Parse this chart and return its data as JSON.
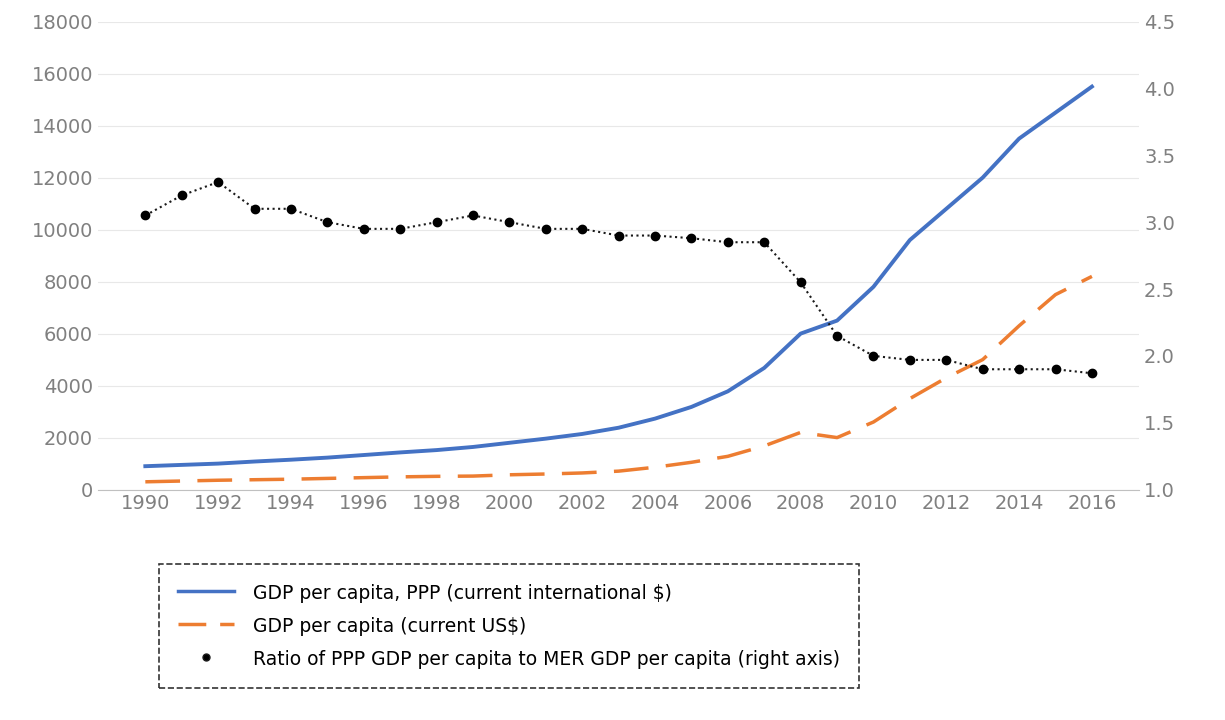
{
  "years": [
    1990,
    1991,
    1992,
    1993,
    1994,
    1995,
    1996,
    1997,
    1998,
    1999,
    2000,
    2001,
    2002,
    2003,
    2004,
    2005,
    2006,
    2007,
    2008,
    2009,
    2010,
    2011,
    2012,
    2013,
    2014,
    2015,
    2016
  ],
  "gdp_ppp": [
    900,
    950,
    1000,
    1080,
    1150,
    1230,
    1330,
    1430,
    1520,
    1640,
    1800,
    1960,
    2140,
    2380,
    2730,
    3180,
    3780,
    4680,
    6000,
    6500,
    7800,
    9600,
    10800,
    12000,
    13500,
    14500,
    15500
  ],
  "gdp_mer": [
    300,
    330,
    360,
    380,
    400,
    430,
    460,
    490,
    510,
    520,
    570,
    600,
    640,
    710,
    860,
    1050,
    1280,
    1680,
    2200,
    2000,
    2600,
    3500,
    4300,
    5000,
    6300,
    7500,
    8200
  ],
  "ratio": [
    3.05,
    3.2,
    3.3,
    3.1,
    3.1,
    3.0,
    2.95,
    2.95,
    3.0,
    3.05,
    3.0,
    2.95,
    2.95,
    2.9,
    2.9,
    2.88,
    2.85,
    2.85,
    2.55,
    2.15,
    2.0,
    1.97,
    1.97,
    1.9,
    1.9,
    1.9,
    1.87
  ],
  "left_ylim": [
    0,
    18000
  ],
  "left_yticks": [
    0,
    2000,
    4000,
    6000,
    8000,
    10000,
    12000,
    14000,
    16000,
    18000
  ],
  "right_ylim": [
    1.0,
    4.5
  ],
  "right_yticks": [
    1.0,
    1.5,
    2.0,
    2.5,
    3.0,
    3.5,
    4.0,
    4.5
  ],
  "xticks": [
    1990,
    1992,
    1994,
    1996,
    1998,
    2000,
    2002,
    2004,
    2006,
    2008,
    2010,
    2012,
    2014,
    2016
  ],
  "color_ppp": "#4472C4",
  "color_mer": "#ED7D31",
  "color_ratio": "#1a1a1a",
  "legend_labels": [
    "GDP per capita, PPP (current international $)",
    "GDP per capita (current US$)",
    "Ratio of PPP GDP per capita to MER GDP per capita (right axis)"
  ],
  "background_color": "#ffffff",
  "tick_color": "#808080",
  "grid_color": "#e8e8e8",
  "legend_fontsize": 13.5,
  "tick_fontsize": 14
}
